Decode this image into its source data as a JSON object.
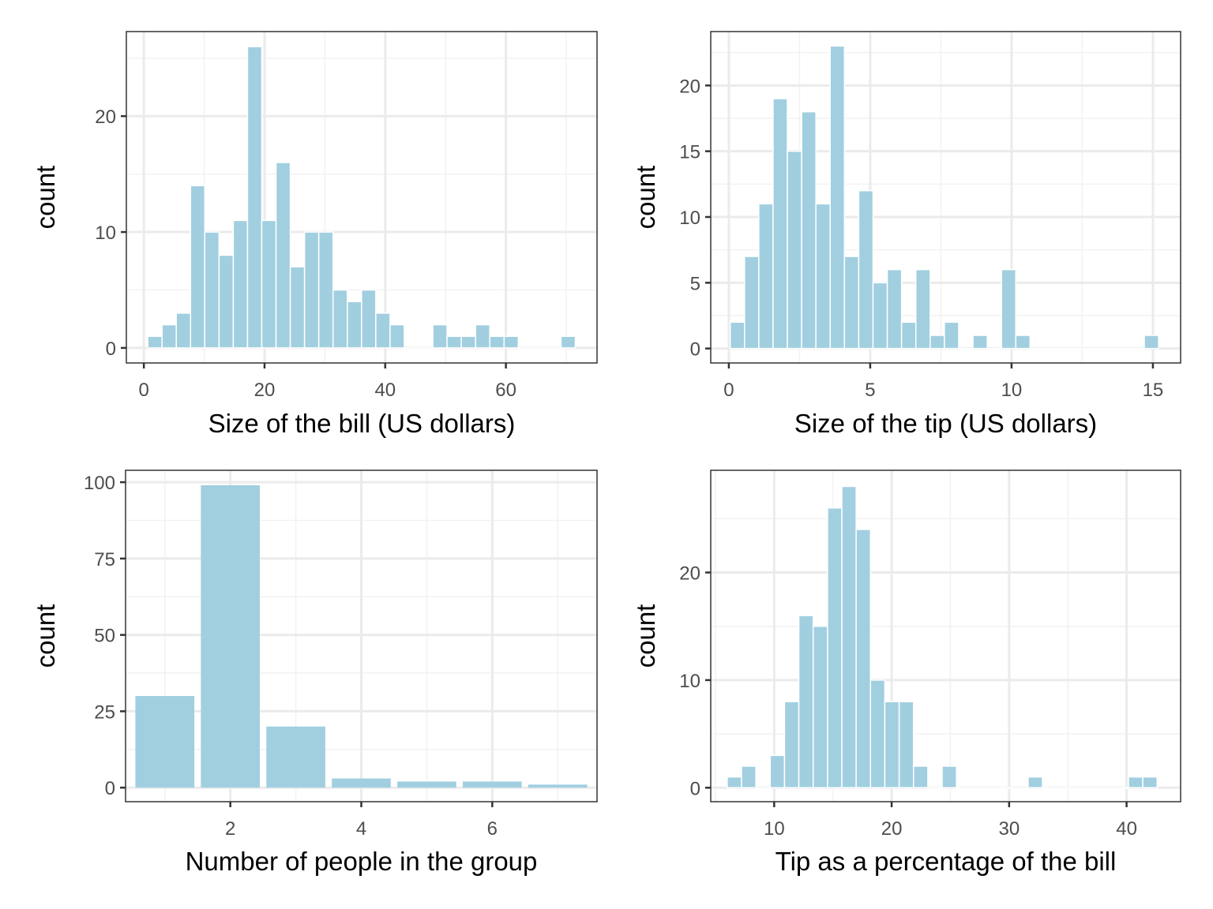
{
  "colors": {
    "bar_fill": "#a1cfe0",
    "bar_stroke": "#ffffff",
    "grid_major": "#ebebeb",
    "grid_minor": "#f2f2f2",
    "panel_border": "#333333",
    "tick_text": "#4d4d4d"
  },
  "chart_data": [
    {
      "id": "bill",
      "type": "bar",
      "subtype": "histogram",
      "title": "",
      "xlabel": "Size of the bill (US dollars)",
      "ylabel": "count",
      "bin_range": [
        0.65,
        71.5
      ],
      "bins": 30,
      "counts": [
        1,
        2,
        3,
        14,
        10,
        8,
        11,
        26,
        11,
        16,
        7,
        10,
        10,
        5,
        4,
        5,
        3,
        2,
        0,
        0,
        2,
        1,
        1,
        2,
        1,
        1,
        0,
        0,
        0,
        1
      ],
      "xlim": [
        -2.9,
        75.1
      ],
      "ylim": [
        -1.3,
        27.3
      ],
      "xticks": [
        0,
        20,
        40,
        60
      ],
      "xtick_labels": [
        "0",
        "20",
        "40",
        "60"
      ],
      "yticks": [
        0,
        10,
        20
      ],
      "ytick_labels": [
        "0",
        "10",
        "20"
      ],
      "grid": true
    },
    {
      "id": "tip",
      "type": "bar",
      "subtype": "histogram",
      "title": "",
      "xlabel": "Size of the tip (US dollars)",
      "ylabel": "count",
      "bin_range": [
        0.05,
        15.2
      ],
      "bins": 30,
      "counts": [
        2,
        7,
        11,
        19,
        15,
        18,
        11,
        23,
        7,
        12,
        5,
        6,
        2,
        6,
        1,
        2,
        0,
        1,
        0,
        6,
        1,
        0,
        0,
        0,
        0,
        0,
        0,
        0,
        0,
        1
      ],
      "xlim": [
        -0.64,
        15.98
      ],
      "ylim": [
        -1.1,
        24.1
      ],
      "xticks": [
        0,
        5,
        10,
        15
      ],
      "xtick_labels": [
        "0",
        "5",
        "10",
        "15"
      ],
      "yticks": [
        0,
        5,
        10,
        15,
        20
      ],
      "ytick_labels": [
        "0",
        "5",
        "10",
        "15",
        "20"
      ],
      "grid": true
    },
    {
      "id": "size",
      "type": "bar",
      "title": "",
      "xlabel": "Number of people in the group",
      "ylabel": "count",
      "categories": [
        1,
        2,
        3,
        4,
        5,
        6,
        7
      ],
      "values": [
        30,
        99,
        20,
        3,
        2,
        2,
        1
      ],
      "xlim": [
        0.4,
        7.6
      ],
      "ylim": [
        -4.6,
        103.9
      ],
      "xticks": [
        2,
        4,
        6
      ],
      "xtick_labels": [
        "2",
        "4",
        "6"
      ],
      "yticks": [
        0,
        25,
        50,
        75,
        100
      ],
      "ytick_labels": [
        "0",
        "25",
        "50",
        "75",
        "100"
      ],
      "grid": true
    },
    {
      "id": "pct",
      "type": "bar",
      "subtype": "histogram",
      "title": "",
      "xlabel": "Tip as a percentage of the bill",
      "ylabel": "count",
      "bin_range": [
        6.0,
        42.6
      ],
      "bins": 30,
      "counts": [
        1,
        2,
        0,
        3,
        8,
        16,
        15,
        26,
        28,
        24,
        10,
        8,
        8,
        2,
        0,
        2,
        0,
        0,
        0,
        0,
        0,
        1,
        0,
        0,
        0,
        0,
        0,
        0,
        1,
        1
      ],
      "xlim": [
        4.6,
        44.6
      ],
      "ylim": [
        -1.3,
        29.5
      ],
      "xticks": [
        10,
        20,
        30,
        40
      ],
      "xtick_labels": [
        "10",
        "20",
        "30",
        "40"
      ],
      "yticks": [
        0,
        10,
        20
      ],
      "ytick_labels": [
        "0",
        "10",
        "20"
      ],
      "grid": true
    }
  ]
}
